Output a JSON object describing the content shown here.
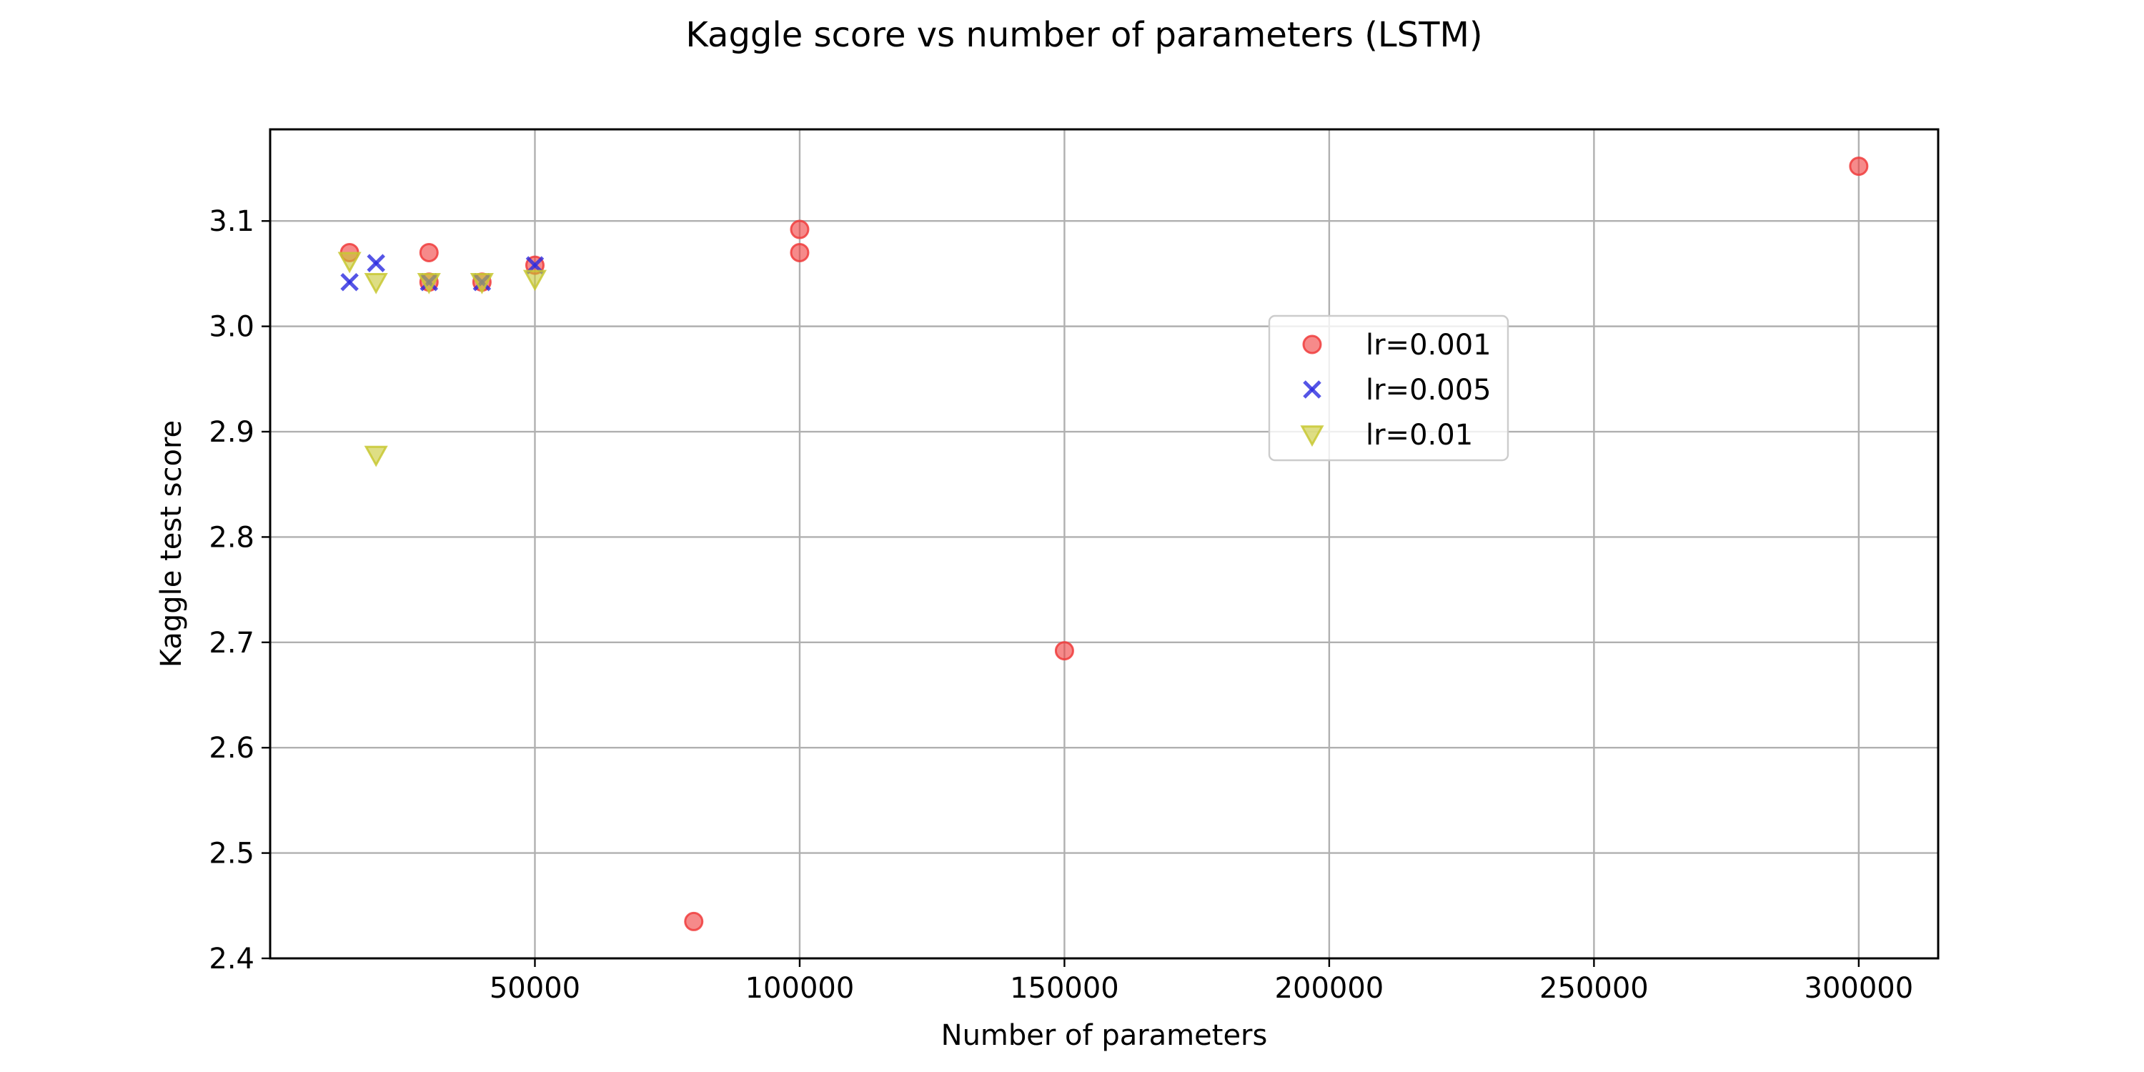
{
  "chart_data": {
    "type": "scatter",
    "title": "Kaggle score vs number of parameters (LSTM)",
    "xlabel": "Number of parameters",
    "ylabel": "Kaggle test score",
    "xlim": [
      0,
      315000
    ],
    "ylim": [
      2.4,
      3.187
    ],
    "xticks": [
      50000,
      100000,
      150000,
      200000,
      250000,
      300000
    ],
    "yticks": [
      2.4,
      2.5,
      2.6,
      2.7,
      2.8,
      2.9,
      3.0,
      3.1
    ],
    "grid": true,
    "legend_position": "center-right",
    "series": [
      {
        "name": "lr=0.001",
        "marker": "circle",
        "color": "#f03c3c",
        "points": [
          [
            15000,
            3.07
          ],
          [
            30000,
            3.07
          ],
          [
            30000,
            3.042
          ],
          [
            40000,
            3.042
          ],
          [
            50000,
            3.058
          ],
          [
            100000,
            3.092
          ],
          [
            100000,
            3.07
          ],
          [
            80000,
            2.435
          ],
          [
            150000,
            2.692
          ],
          [
            300000,
            3.152
          ]
        ]
      },
      {
        "name": "lr=0.005",
        "marker": "x",
        "color": "#2a2ae0",
        "points": [
          [
            15000,
            3.042
          ],
          [
            20000,
            3.06
          ],
          [
            30000,
            3.042
          ],
          [
            40000,
            3.042
          ],
          [
            50000,
            3.058
          ]
        ]
      },
      {
        "name": "lr=0.01",
        "marker": "triangle-down",
        "color": "#c8c832",
        "points": [
          [
            15000,
            3.062
          ],
          [
            20000,
            3.042
          ],
          [
            20000,
            2.878
          ],
          [
            30000,
            3.042
          ],
          [
            40000,
            3.042
          ],
          [
            50000,
            3.045
          ]
        ]
      }
    ]
  }
}
